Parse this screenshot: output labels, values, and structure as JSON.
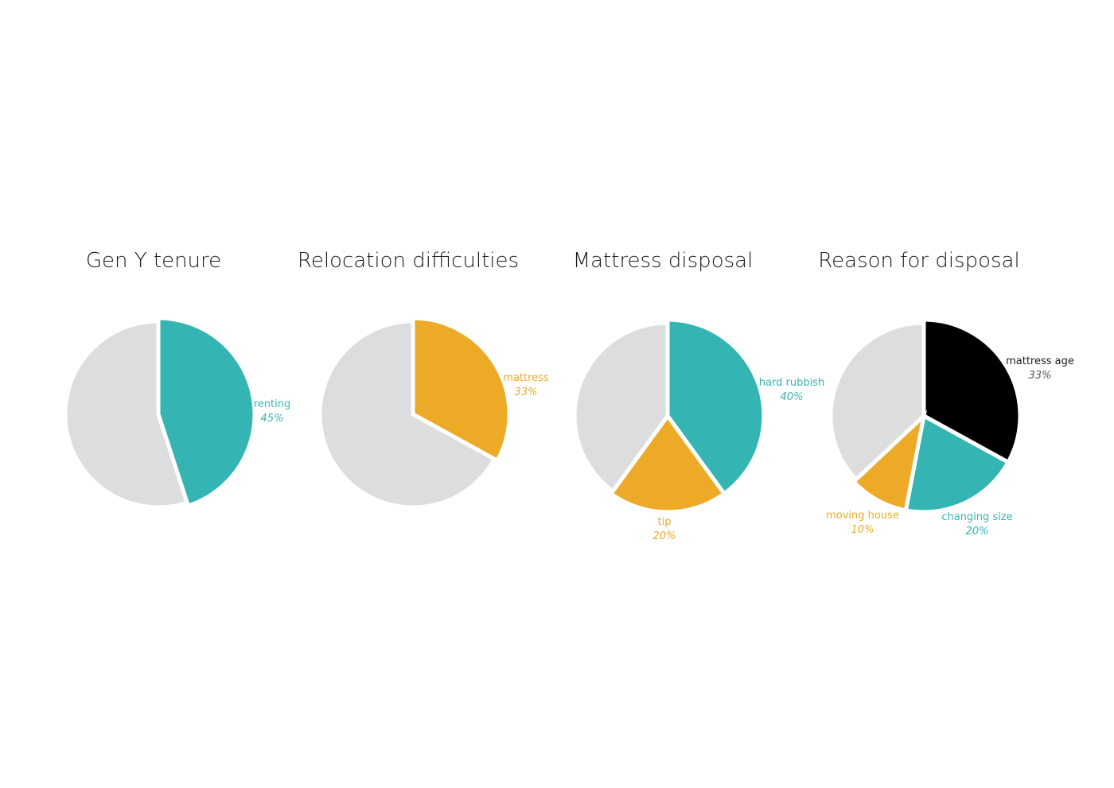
{
  "colors": {
    "grey": "#dcdddf",
    "teal": "#34b5b3",
    "orange": "#edaa27",
    "black": "#000000"
  },
  "chart_data": [
    {
      "type": "pie",
      "title": "Gen Y tenure",
      "slices": [
        {
          "label": "renting",
          "value": 45,
          "value_text": "45%",
          "color": "teal",
          "highlight": true
        },
        {
          "label": "",
          "value": 55,
          "value_text": "",
          "color": "grey",
          "highlight": false
        }
      ]
    },
    {
      "type": "pie",
      "title": "Relocation difficulties",
      "slices": [
        {
          "label": "mattress",
          "value": 33,
          "value_text": "33%",
          "color": "orange",
          "highlight": true
        },
        {
          "label": "",
          "value": 67,
          "value_text": "",
          "color": "grey",
          "highlight": false
        }
      ]
    },
    {
      "type": "pie",
      "title": "Mattress disposal",
      "slices": [
        {
          "label": "hard rubbish",
          "value": 40,
          "value_text": "40%",
          "color": "teal",
          "highlight": true
        },
        {
          "label": "tip",
          "value": 20,
          "value_text": "20%",
          "color": "orange",
          "highlight": true
        },
        {
          "label": "",
          "value": 40,
          "value_text": "",
          "color": "grey",
          "highlight": false
        }
      ]
    },
    {
      "type": "pie",
      "title": "Reason for disposal",
      "slices": [
        {
          "label": "mattress age",
          "value": 33,
          "value_text": "33%",
          "color": "black",
          "highlight": true
        },
        {
          "label": "changing size",
          "value": 20,
          "value_text": "20%",
          "color": "teal",
          "highlight": true
        },
        {
          "label": "moving house",
          "value": 10,
          "value_text": "10%",
          "color": "orange",
          "highlight": true
        },
        {
          "label": "",
          "value": 37,
          "value_text": "",
          "color": "grey",
          "highlight": false
        }
      ]
    }
  ]
}
